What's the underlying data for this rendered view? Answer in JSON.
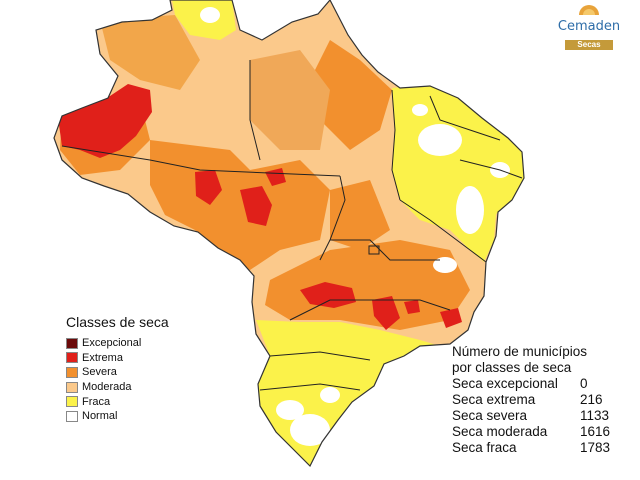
{
  "logo": {
    "name": "Cemaden",
    "tag": "Secas"
  },
  "legend": {
    "title": "Classes de seca",
    "classes": [
      {
        "label": "Excepcional",
        "color": "#6b0a0a"
      },
      {
        "label": "Extrema",
        "color": "#e0201a"
      },
      {
        "label": "Severa",
        "color": "#f2902e"
      },
      {
        "label": "Moderada",
        "color": "#fbc98b"
      },
      {
        "label": "Fraca",
        "color": "#fbf24a"
      },
      {
        "label": "Normal",
        "color": "#ffffff"
      }
    ]
  },
  "stats": {
    "title_line1": "Número de municípios",
    "title_line2": "por classes de seca",
    "rows": [
      {
        "label": "Seca excepcional",
        "value": "0"
      },
      {
        "label": "Seca extrema",
        "value": "216"
      },
      {
        "label": "Seca severa",
        "value": "1133"
      },
      {
        "label": "Seca moderada",
        "value": "1616"
      },
      {
        "label": "Seca fraca",
        "value": "1783"
      }
    ]
  }
}
